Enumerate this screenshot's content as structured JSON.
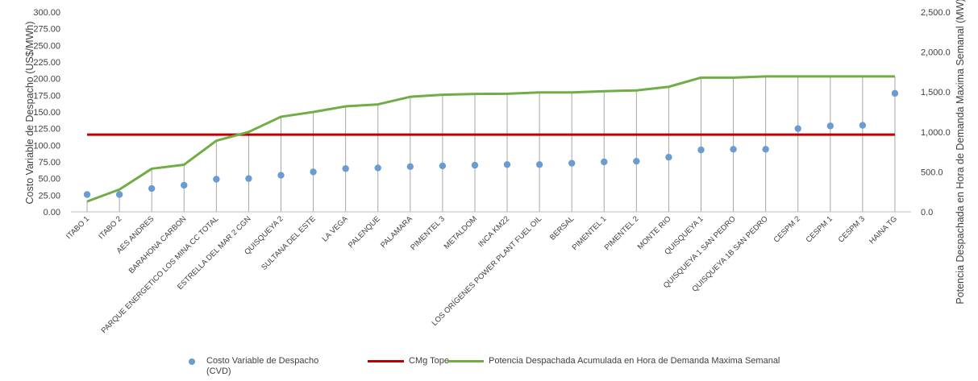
{
  "chart_data": {
    "type": "line",
    "categories": [
      "ITABO 1",
      "ITABO 2",
      "AES ANDRES",
      "BARAHONA CARBON",
      "PARQUE ENERGETICO LOS MINA CC TOTAL",
      "ESTRELLA DEL MAR 2 CGN",
      "QUISQUEYA 2",
      "SULTANA DEL ESTE",
      "LA VEGA",
      "PALENQUE",
      "PALAMARA",
      "PIMENTEL 3",
      "METALDOM",
      "INCA KM22",
      "LOS ORÍGENES POWER PLANT FUEL OIL",
      "BERSAL",
      "PIMENTEL 1",
      "PIMENTEL 2",
      "MONTE RIO",
      "QUISQUEYA 1",
      "QUISQUEYA 1 SAN PEDRO",
      "QUISQUEYA 1B SAN PEDRO",
      "CESPM 2",
      "CESPM 1",
      "CESPM 3",
      "HAINA TG"
    ],
    "y_ticks": [
      "0.00",
      "25.00",
      "50.00",
      "75.00",
      "100.00",
      "125.00",
      "150.00",
      "175.00",
      "200.00",
      "225.00",
      "250.00",
      "275.00",
      "300.00"
    ],
    "y2_ticks": [
      "0.0",
      "500.0",
      "1,000.0",
      "1,500.0",
      "2,000.0",
      "2,500.0"
    ],
    "ylim": [
      0,
      300
    ],
    "y2lim": [
      0,
      2500
    ],
    "ylabel": "Costo Variable de Despacho (US$/MWh)",
    "y2label": "Potencia Despachada en Hora de Demanda Maxima Semanal (MW)",
    "grid": false,
    "legend_position": "bottom",
    "series": [
      {
        "name": "Costo Variable de Despacho (CVD)",
        "kind": "scatter",
        "axis": "left",
        "color": "#6a9bd1",
        "values": [
          26,
          26,
          35,
          40,
          49,
          50,
          55,
          60,
          65,
          66,
          68,
          69,
          70,
          71,
          71,
          73,
          75,
          76,
          82,
          93,
          94,
          94,
          125,
          129,
          130,
          178
        ]
      },
      {
        "name": "CMg Tope",
        "kind": "line",
        "axis": "left",
        "color": "#c00000",
        "values": [
          116,
          116,
          116,
          116,
          116,
          116,
          116,
          116,
          116,
          116,
          116,
          116,
          116,
          116,
          116,
          116,
          116,
          116,
          116,
          116,
          116,
          116,
          116,
          116,
          116,
          116
        ]
      },
      {
        "name": "Potencia Despachada Acumulada en Hora de Demanda Maxima Semanal",
        "kind": "line",
        "axis": "right",
        "color": "#70ad47",
        "values": [
          130,
          280,
          540,
          590,
          890,
          1000,
          1190,
          1250,
          1320,
          1345,
          1440,
          1465,
          1475,
          1478,
          1495,
          1495,
          1510,
          1520,
          1565,
          1680,
          1680,
          1695,
          1695,
          1695,
          1695,
          1695
        ]
      }
    ]
  },
  "legend": [
    {
      "label": "Costo Variable de Despacho (CVD)",
      "color": "#6a9bd1",
      "kind": "dot"
    },
    {
      "label": "CMg Tope",
      "color": "#c00000",
      "kind": "line"
    },
    {
      "label": "Potencia Despachada Acumulada en Hora de Demanda Maxima Semanal",
      "color": "#70ad47",
      "kind": "line"
    }
  ]
}
